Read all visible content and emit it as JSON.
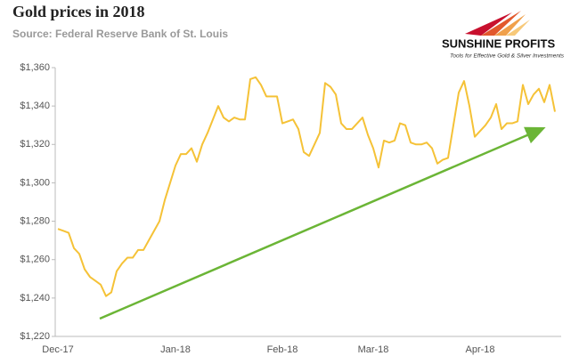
{
  "chart_data": {
    "type": "line",
    "title": "Gold prices in 2018",
    "subtitle": "Source: Federal Reserve Bank of St. Louis",
    "logo": {
      "name": "SUNSHINE PROFITS",
      "tagline": "Tools for Effective Gold & Silver Investments"
    },
    "categories": [
      "Dec-17",
      null,
      null,
      null,
      null,
      null,
      null,
      null,
      null,
      null,
      null,
      null,
      null,
      null,
      null,
      null,
      null,
      null,
      null,
      null,
      null,
      null,
      "Jan-18",
      null,
      null,
      null,
      null,
      null,
      null,
      null,
      null,
      null,
      null,
      null,
      null,
      null,
      null,
      null,
      null,
      null,
      null,
      null,
      "Feb-18",
      null,
      null,
      null,
      null,
      null,
      null,
      null,
      null,
      null,
      null,
      null,
      null,
      null,
      null,
      null,
      null,
      "Mar-18",
      null,
      null,
      null,
      null,
      null,
      null,
      null,
      null,
      null,
      null,
      null,
      null,
      null,
      null,
      null,
      null,
      null,
      null,
      null,
      "Apr-18",
      null,
      null,
      null,
      null,
      null,
      null,
      null,
      null,
      null,
      null,
      null,
      null,
      null,
      null
    ],
    "series": [
      {
        "name": "Gold price",
        "color": "#f5c237",
        "values": [
          1276,
          1275,
          1274,
          1266,
          1263,
          1255,
          1251,
          1249,
          1247,
          1241,
          1243,
          1254,
          1258,
          1261,
          1261,
          1265,
          1265,
          1270,
          1275,
          1280,
          1291,
          1300,
          1309,
          1315,
          1315,
          1318,
          1311,
          1320,
          1326,
          1333,
          1340,
          1334,
          1332,
          1334,
          1333,
          1333,
          1354,
          1355,
          1351,
          1345,
          1345,
          1345,
          1331,
          1332,
          1333,
          1328,
          1316,
          1314,
          1320,
          1326,
          1352,
          1350,
          1346,
          1331,
          1328,
          1328,
          1331,
          1334,
          1325,
          1318,
          1308,
          1322,
          1321,
          1322,
          1331,
          1330,
          1321,
          1320,
          1320,
          1321,
          1318,
          1310,
          1312,
          1313,
          1330,
          1347,
          1353,
          1340,
          1324,
          1327,
          1330,
          1334,
          1341,
          1328,
          1331,
          1331,
          1332,
          1351,
          1341,
          1346,
          1349,
          1342,
          1351,
          1337
        ]
      }
    ],
    "ylim": [
      1220,
      1360
    ],
    "yticks": [
      {
        "value": 1220,
        "label": "$1,220"
      },
      {
        "value": 1240,
        "label": "$1,240"
      },
      {
        "value": 1260,
        "label": "$1,260"
      },
      {
        "value": 1280,
        "label": "$1,280"
      },
      {
        "value": 1300,
        "label": "$1,300"
      },
      {
        "value": 1320,
        "label": "$1,320"
      },
      {
        "value": 1340,
        "label": "$1,340"
      },
      {
        "value": 1360,
        "label": "$1,360"
      }
    ],
    "grid": false
  }
}
